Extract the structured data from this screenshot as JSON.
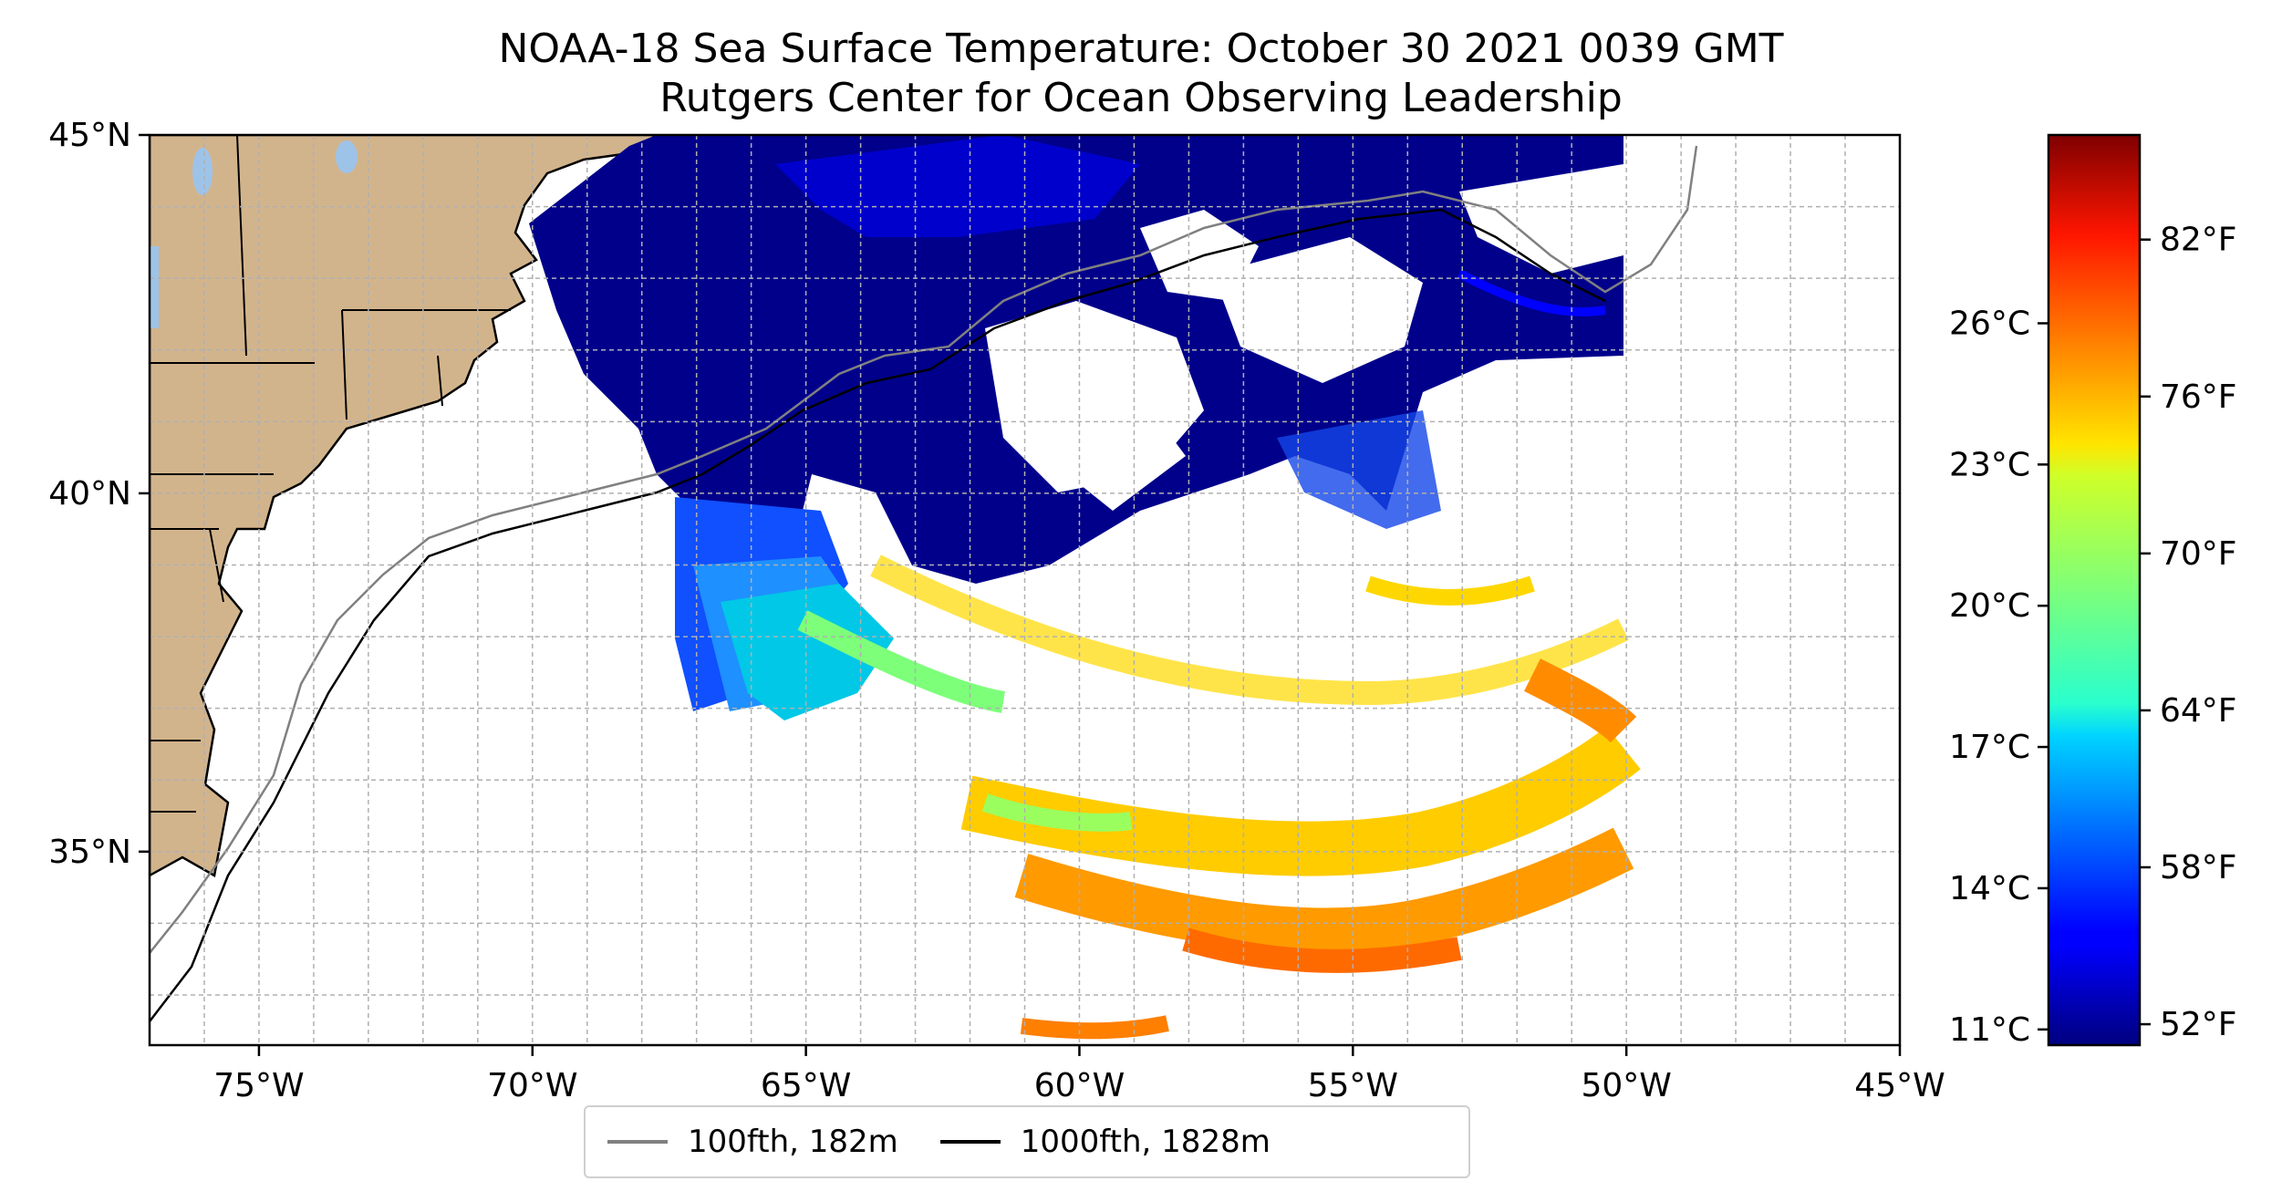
{
  "title": {
    "line1": "NOAA-18 Sea Surface Temperature: October 30 2021 0039 GMT",
    "line2": "Rutgers Center for Ocean Observing Leadership"
  },
  "map": {
    "lon_range": [
      -77,
      -45
    ],
    "lat_range": [
      32.3,
      45
    ],
    "lon_ticks": [
      {
        "lon": -75,
        "label": "75°W"
      },
      {
        "lon": -70,
        "label": "70°W"
      },
      {
        "lon": -65,
        "label": "65°W"
      },
      {
        "lon": -60,
        "label": "60°W"
      },
      {
        "lon": -55,
        "label": "55°W"
      },
      {
        "lon": -50,
        "label": "50°W"
      },
      {
        "lon": -45,
        "label": "45°W"
      }
    ],
    "lat_ticks": [
      {
        "lat": 45,
        "label": "45°N"
      },
      {
        "lat": 40,
        "label": "40°N"
      },
      {
        "lat": 35,
        "label": "35°N"
      }
    ],
    "gridlines": true,
    "grid_style": "dashed",
    "land_color": "#d2b48c",
    "lake_color": "#9ec3e8"
  },
  "colorbar": {
    "colormap": "jet",
    "celsius_ticks": [
      {
        "value": 11,
        "label": "11°C"
      },
      {
        "value": 14,
        "label": "14°C"
      },
      {
        "value": 17,
        "label": "17°C"
      },
      {
        "value": 20,
        "label": "20°C"
      },
      {
        "value": 23,
        "label": "23°C"
      },
      {
        "value": 26,
        "label": "26°C"
      }
    ],
    "fahrenheit_ticks": [
      {
        "value": 52,
        "label": "52°F"
      },
      {
        "value": 58,
        "label": "58°F"
      },
      {
        "value": 64,
        "label": "64°F"
      },
      {
        "value": 70,
        "label": "70°F"
      },
      {
        "value": 76,
        "label": "76°F"
      },
      {
        "value": 82,
        "label": "82°F"
      }
    ]
  },
  "legend": {
    "items": [
      {
        "label": "100fth, 182m",
        "color": "#808080"
      },
      {
        "label": "1000fth, 1828m",
        "color": "#000000"
      }
    ]
  }
}
